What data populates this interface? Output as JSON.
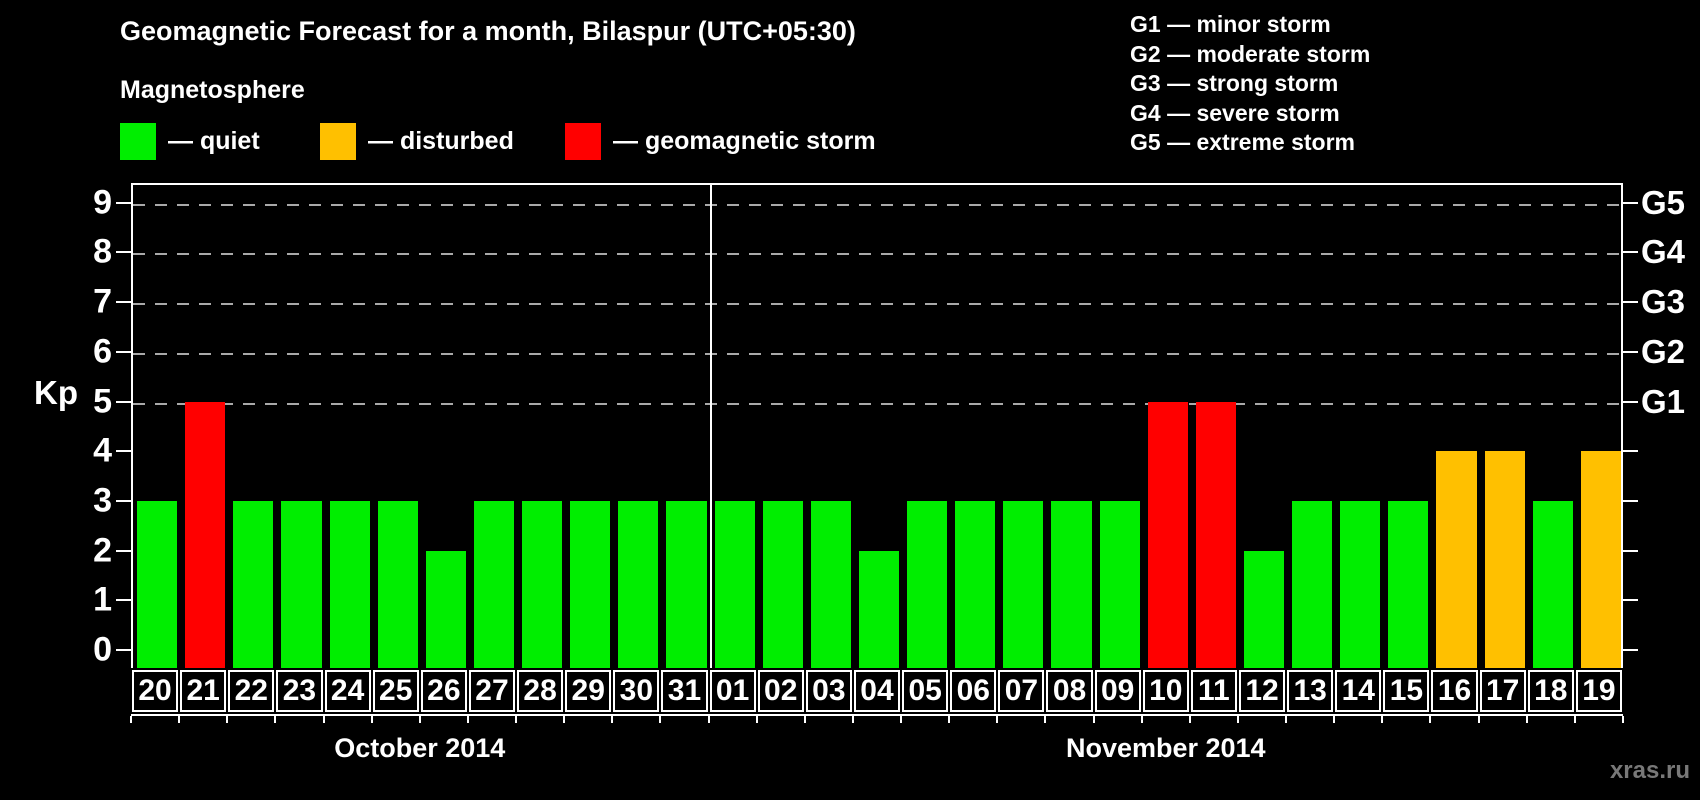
{
  "title": "Geomagnetic Forecast for a month, Bilaspur (UTC+05:30)",
  "subtitle": "Magnetosphere",
  "legend": {
    "items": [
      {
        "key": "quiet",
        "label": "— quiet",
        "color": "#00ee00"
      },
      {
        "key": "disturbed",
        "label": "— disturbed",
        "color": "#ffc000"
      },
      {
        "key": "storm",
        "label": "— geomagnetic storm",
        "color": "#ff0000"
      }
    ]
  },
  "g_legend": [
    "G1 — minor storm",
    "G2 — moderate storm",
    "G3 — strong storm",
    "G4 — severe storm",
    "G5 — extreme storm"
  ],
  "watermark": "xras.ru",
  "chart_data": {
    "type": "bar",
    "title": "Geomagnetic Forecast for a month, Bilaspur (UTC+05:30)",
    "ylabel": "Kp",
    "ylim": [
      0,
      9
    ],
    "y_ticks": [
      0,
      1,
      2,
      3,
      4,
      5,
      6,
      7,
      8,
      9
    ],
    "gridlines_at": [
      5,
      6,
      7,
      8,
      9
    ],
    "grid": "dashed horizontal at G-storm levels only",
    "right_axis_labels": [
      {
        "kp": 5,
        "label": "G1"
      },
      {
        "kp": 6,
        "label": "G2"
      },
      {
        "kp": 7,
        "label": "G3"
      },
      {
        "kp": 8,
        "label": "G4"
      },
      {
        "kp": 9,
        "label": "G5"
      }
    ],
    "months": [
      {
        "label": "October 2014",
        "days": 12
      },
      {
        "label": "November 2014",
        "days": 19
      }
    ],
    "categories": [
      "20",
      "21",
      "22",
      "23",
      "24",
      "25",
      "26",
      "27",
      "28",
      "29",
      "30",
      "31",
      "01",
      "02",
      "03",
      "04",
      "05",
      "06",
      "07",
      "08",
      "09",
      "10",
      "11",
      "12",
      "13",
      "14",
      "15",
      "16",
      "17",
      "18",
      "19"
    ],
    "values": [
      3,
      5,
      3,
      3,
      3,
      3,
      2,
      3,
      3,
      3,
      3,
      3,
      3,
      3,
      3,
      2,
      3,
      3,
      3,
      3,
      3,
      5,
      5,
      2,
      3,
      3,
      3,
      4,
      4,
      3,
      4
    ],
    "statuses": [
      "quiet",
      "storm",
      "quiet",
      "quiet",
      "quiet",
      "quiet",
      "quiet",
      "quiet",
      "quiet",
      "quiet",
      "quiet",
      "quiet",
      "quiet",
      "quiet",
      "quiet",
      "quiet",
      "quiet",
      "quiet",
      "quiet",
      "quiet",
      "quiet",
      "storm",
      "storm",
      "quiet",
      "quiet",
      "quiet",
      "quiet",
      "disturbed",
      "disturbed",
      "quiet",
      "disturbed"
    ],
    "colors": {
      "quiet": "#00ee00",
      "disturbed": "#ffc000",
      "storm": "#ff0000"
    },
    "legend_position": "top-left",
    "background": "#000000",
    "text_color": "#ffffff"
  }
}
